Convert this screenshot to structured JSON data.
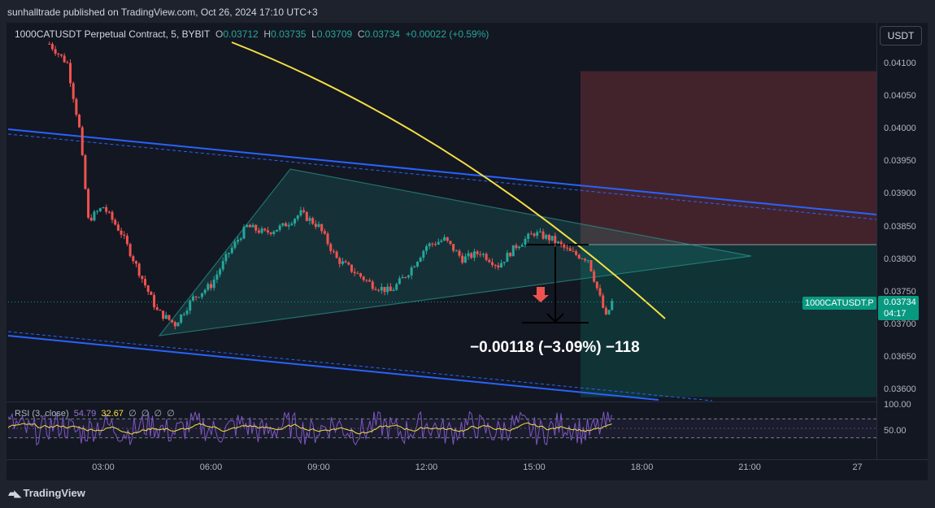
{
  "header": {
    "published": "sunhalltrade published on TradingView.com, Oct 26, 2024 17:10 UTC+3"
  },
  "legend": {
    "symbol": "1000CATUSDT Perpetual Contract, 5, BYBIT",
    "o_label": "O",
    "o_value": "0.03712",
    "h_label": "H",
    "h_value": "0.03735",
    "l_label": "L",
    "l_value": "0.03709",
    "c_label": "C",
    "c_value": "0.03734",
    "change": "+0.00022 (+0.59%)"
  },
  "currency_button": "USDT",
  "price_axis": [
    "0.04100",
    "0.04050",
    "0.04000",
    "0.03950",
    "0.03900",
    "0.03850",
    "0.03800",
    "0.03750",
    "0.03700",
    "0.03650",
    "0.03600"
  ],
  "time_axis": [
    "03:00",
    "06:00",
    "09:00",
    "12:00",
    "15:00",
    "18:00",
    "21:00",
    "27"
  ],
  "symbol_tag": "1000CATUSDT.P",
  "price_tag": {
    "price": "0.03734",
    "countdown": "04:17"
  },
  "measure_label": "−0.00118 (−3.09%) −118",
  "rsi": {
    "label": "RSI (3, close)",
    "value1": "54.79",
    "value2": "32.67",
    "extras": [
      "∅",
      "∅",
      "∅",
      "∅"
    ],
    "axis_top": "100.00",
    "axis_mid": "50.00"
  },
  "colors": {
    "background": "#131722",
    "up": "#26a69a",
    "down": "#ef5350",
    "channel": "#2962ff",
    "curve": "#f5e043",
    "triangle": "#26a69a",
    "rsi_line": "#7e57c2",
    "rsi_ma": "#f5e043"
  },
  "brand": "TradingView",
  "chart_data": {
    "type": "candlestick",
    "symbol": "1000CATUSDT Perpetual Contract, 5, BYBIT",
    "ylim": [
      0.0358,
      0.0413
    ],
    "x_ticks": [
      "03:00",
      "06:00",
      "09:00",
      "12:00",
      "15:00",
      "18:00",
      "21:00",
      "27"
    ],
    "close_path": [
      [
        "01:30",
        0.0413
      ],
      [
        "02:00",
        0.041
      ],
      [
        "02:20",
        0.04
      ],
      [
        "02:35",
        0.0386
      ],
      [
        "03:00",
        0.0388
      ],
      [
        "03:30",
        0.0384
      ],
      [
        "04:00",
        0.0378
      ],
      [
        "04:30",
        0.0372
      ],
      [
        "05:00",
        0.037
      ],
      [
        "05:30",
        0.0374
      ],
      [
        "06:00",
        0.0376
      ],
      [
        "06:30",
        0.0381
      ],
      [
        "07:00",
        0.0385
      ],
      [
        "07:30",
        0.0384
      ],
      [
        "08:00",
        0.0385
      ],
      [
        "08:30",
        0.0387
      ],
      [
        "09:00",
        0.0385
      ],
      [
        "09:30",
        0.038
      ],
      [
        "10:00",
        0.0378
      ],
      [
        "10:30",
        0.0376
      ],
      [
        "11:00",
        0.0375
      ],
      [
        "11:30",
        0.0378
      ],
      [
        "12:00",
        0.0382
      ],
      [
        "12:30",
        0.0383
      ],
      [
        "13:00",
        0.038
      ],
      [
        "13:30",
        0.0381
      ],
      [
        "14:00",
        0.0379
      ],
      [
        "14:30",
        0.0382
      ],
      [
        "15:00",
        0.0384
      ],
      [
        "15:30",
        0.0383
      ],
      [
        "16:00",
        0.0381
      ],
      [
        "16:30",
        0.038
      ],
      [
        "16:50",
        0.0374
      ],
      [
        "17:00",
        0.0371
      ],
      [
        "17:10",
        0.03734
      ]
    ],
    "last_price": 0.03734,
    "measure": {
      "from": 0.03852,
      "to": 0.03734,
      "change": "−0.00118 (−3.09%) −118"
    },
    "position": {
      "entry": 0.03822,
      "stop": 0.04088,
      "target": 0.03588
    },
    "rsi_axis": [
      100.0,
      50.0
    ]
  }
}
